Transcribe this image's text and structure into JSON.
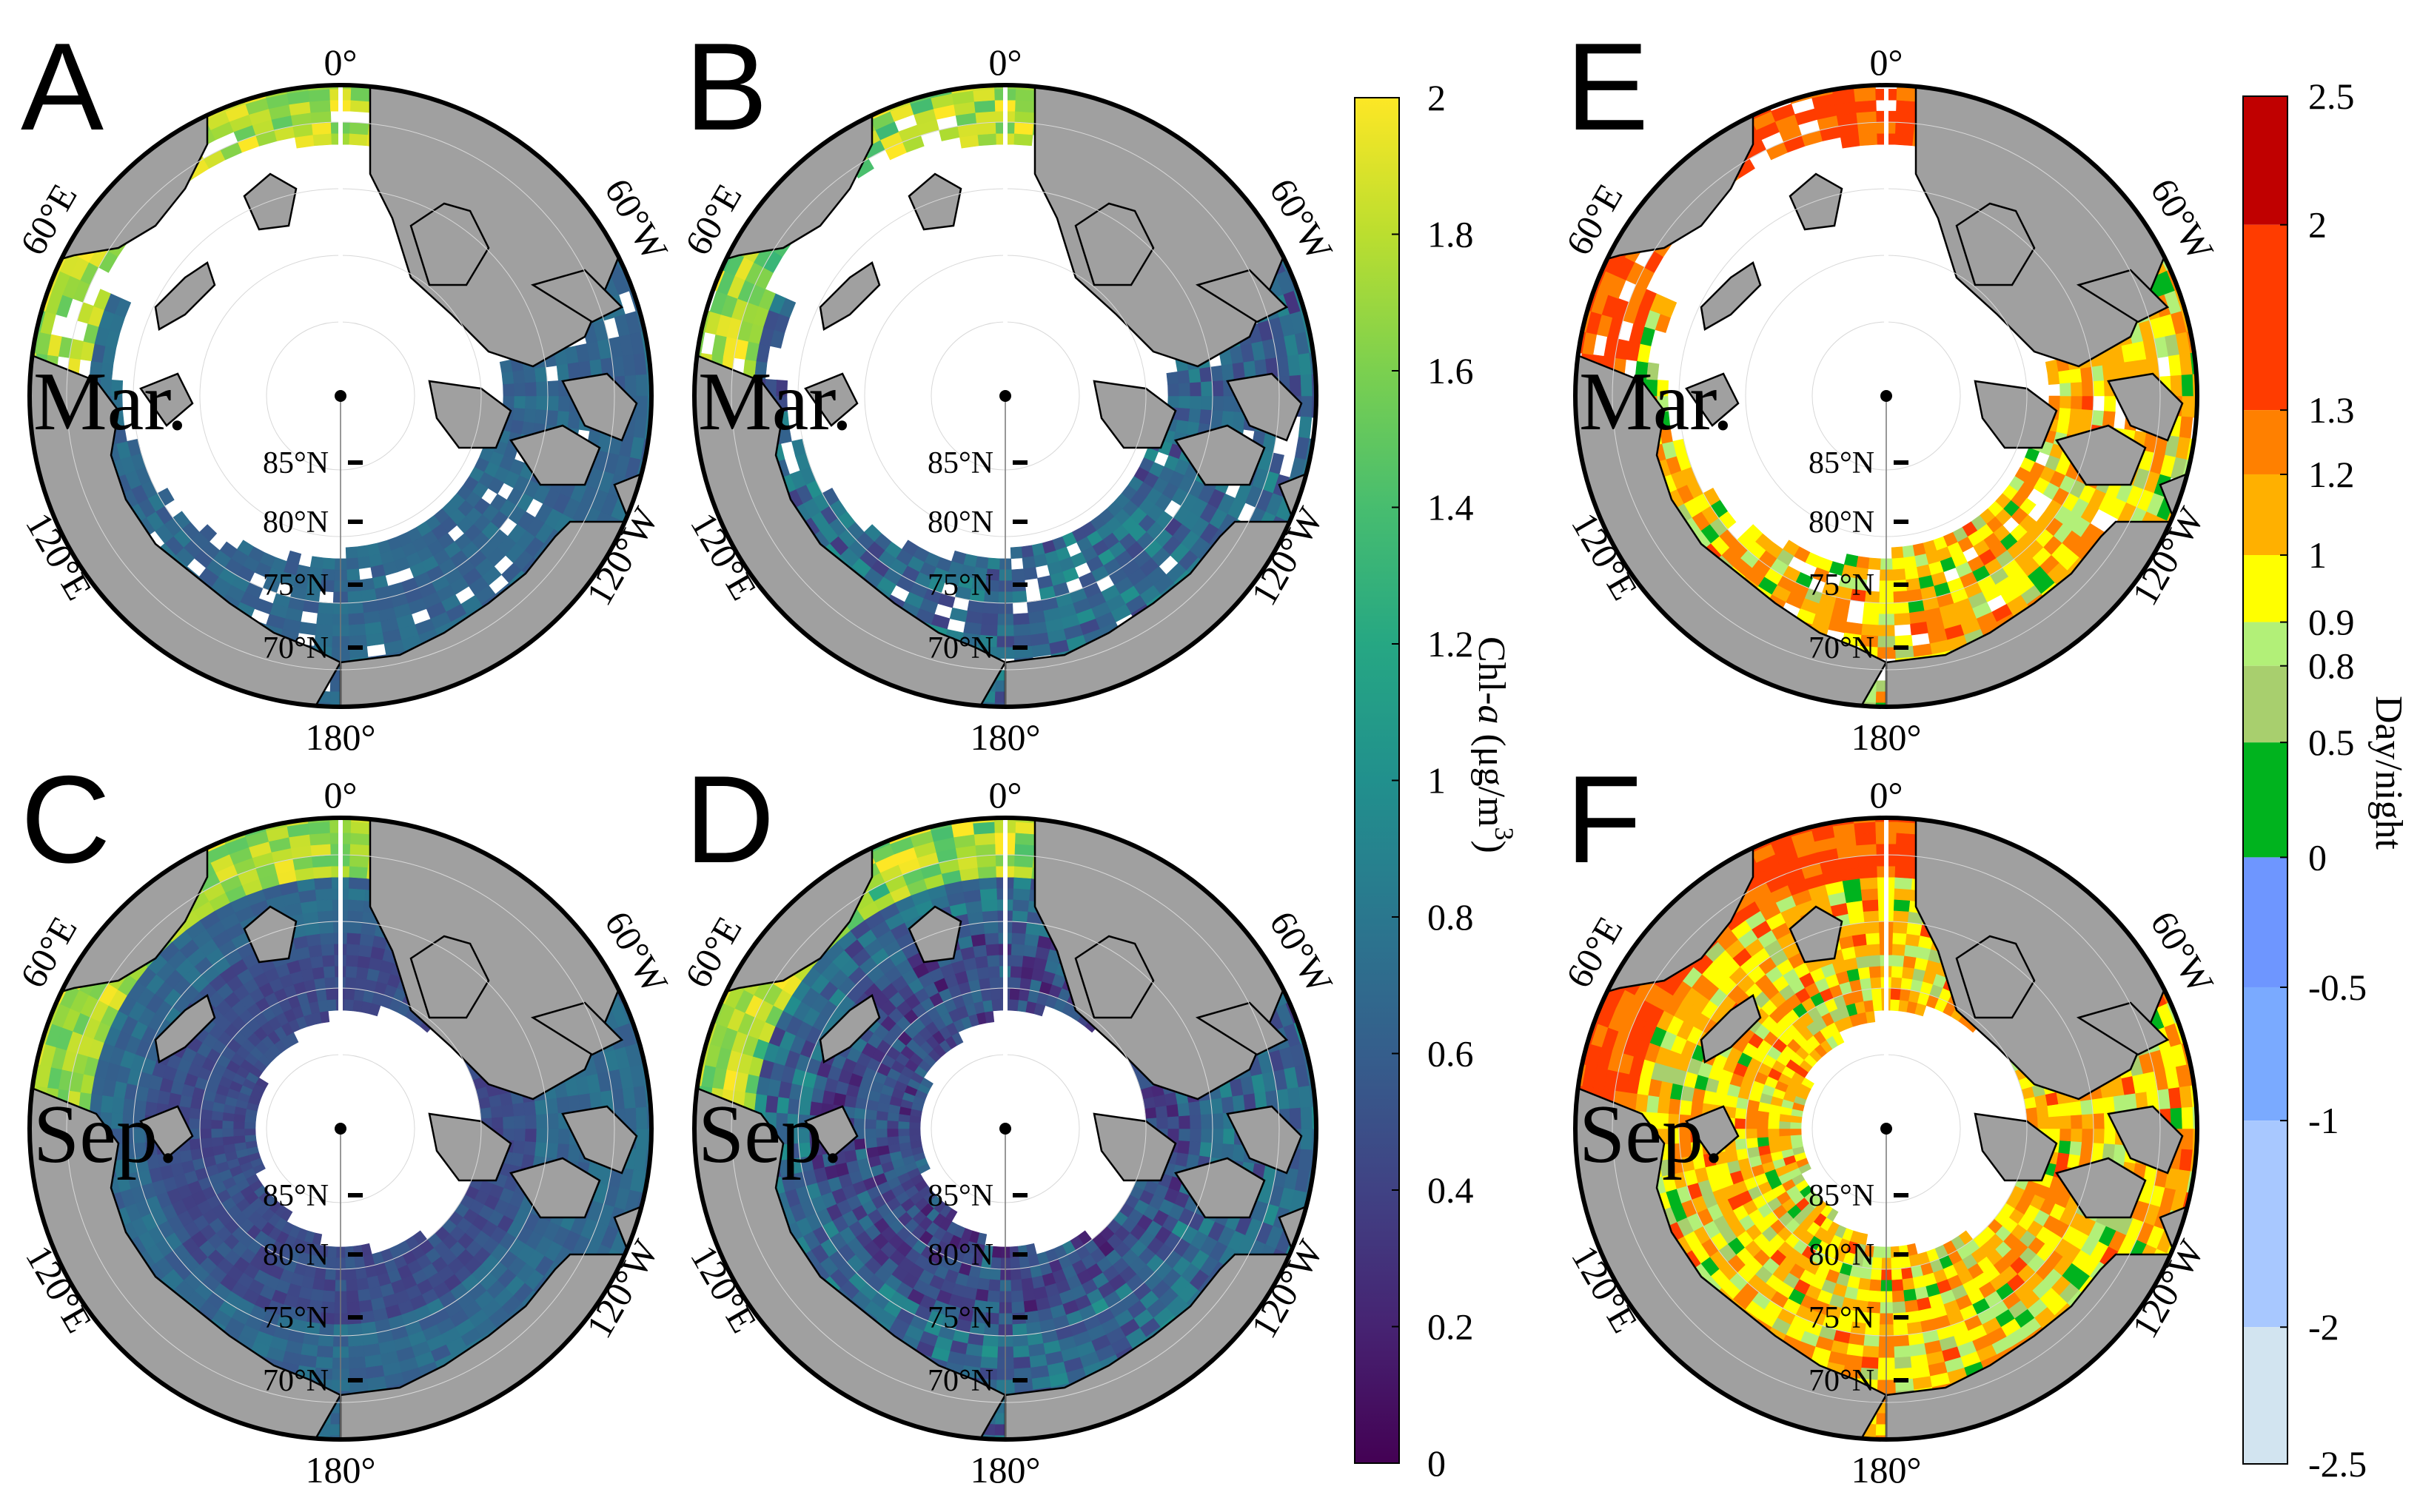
{
  "panels": [
    {
      "letter": "A",
      "month": "Mar.",
      "metric": "chl",
      "season": "mar"
    },
    {
      "letter": "B",
      "month": "Mar.",
      "metric": "chl",
      "season": "mar"
    },
    {
      "letter": "C",
      "month": "Sep.",
      "metric": "chl",
      "season": "sep"
    },
    {
      "letter": "D",
      "month": "Sep.",
      "metric": "chl",
      "season": "sep"
    },
    {
      "letter": "E",
      "month": "Mar.",
      "metric": "ratio",
      "season": "mar"
    },
    {
      "letter": "F",
      "month": "Sep.",
      "metric": "ratio",
      "season": "sep"
    }
  ],
  "longitude_labels": {
    "top": "0°",
    "upper_left": "60°E",
    "upper_right": "60°W",
    "lower_left": "120°E",
    "lower_right": "120°W",
    "bottom": "180°"
  },
  "latitude_labels": [
    "85°N",
    "80°N",
    "75°N",
    "70°N"
  ],
  "colorbar_chl": {
    "label_main": "Chl-",
    "label_italic": "a",
    "label_unit": " (μg/m",
    "label_sup": "3",
    "label_close": ")",
    "min": 0,
    "max": 2,
    "ticks": [
      "2",
      "1.8",
      "1.6",
      "1.4",
      "1.2",
      "1",
      "0.8",
      "0.6",
      "0.4",
      "0.2",
      "0"
    ],
    "colormap": "viridis"
  },
  "colorbar_ratio": {
    "label": "Day/night",
    "ticks": [
      "2.5",
      "2",
      "1.3",
      "1.2",
      "1",
      "0.9",
      "0.8",
      "0.5",
      "0",
      "-0.5",
      "-1",
      "-2",
      "-2.5"
    ],
    "bins": [
      {
        "color": "#c00000"
      },
      {
        "color": "#ff3c00"
      },
      {
        "color": "#ff8000"
      },
      {
        "color": "#ffb000"
      },
      {
        "color": "#ffff00"
      },
      {
        "color": "#b2f078"
      },
      {
        "color": "#a8cf6e"
      },
      {
        "color": "#00b31e"
      },
      {
        "color": "#6e96ff"
      },
      {
        "color": "#7aaaff"
      },
      {
        "color": "#a8c8ff"
      },
      {
        "color": "#d2e4f0"
      }
    ]
  },
  "colors": {
    "land": "#a0a0a0",
    "ice": "#ffffff",
    "frame": "#000000"
  }
}
